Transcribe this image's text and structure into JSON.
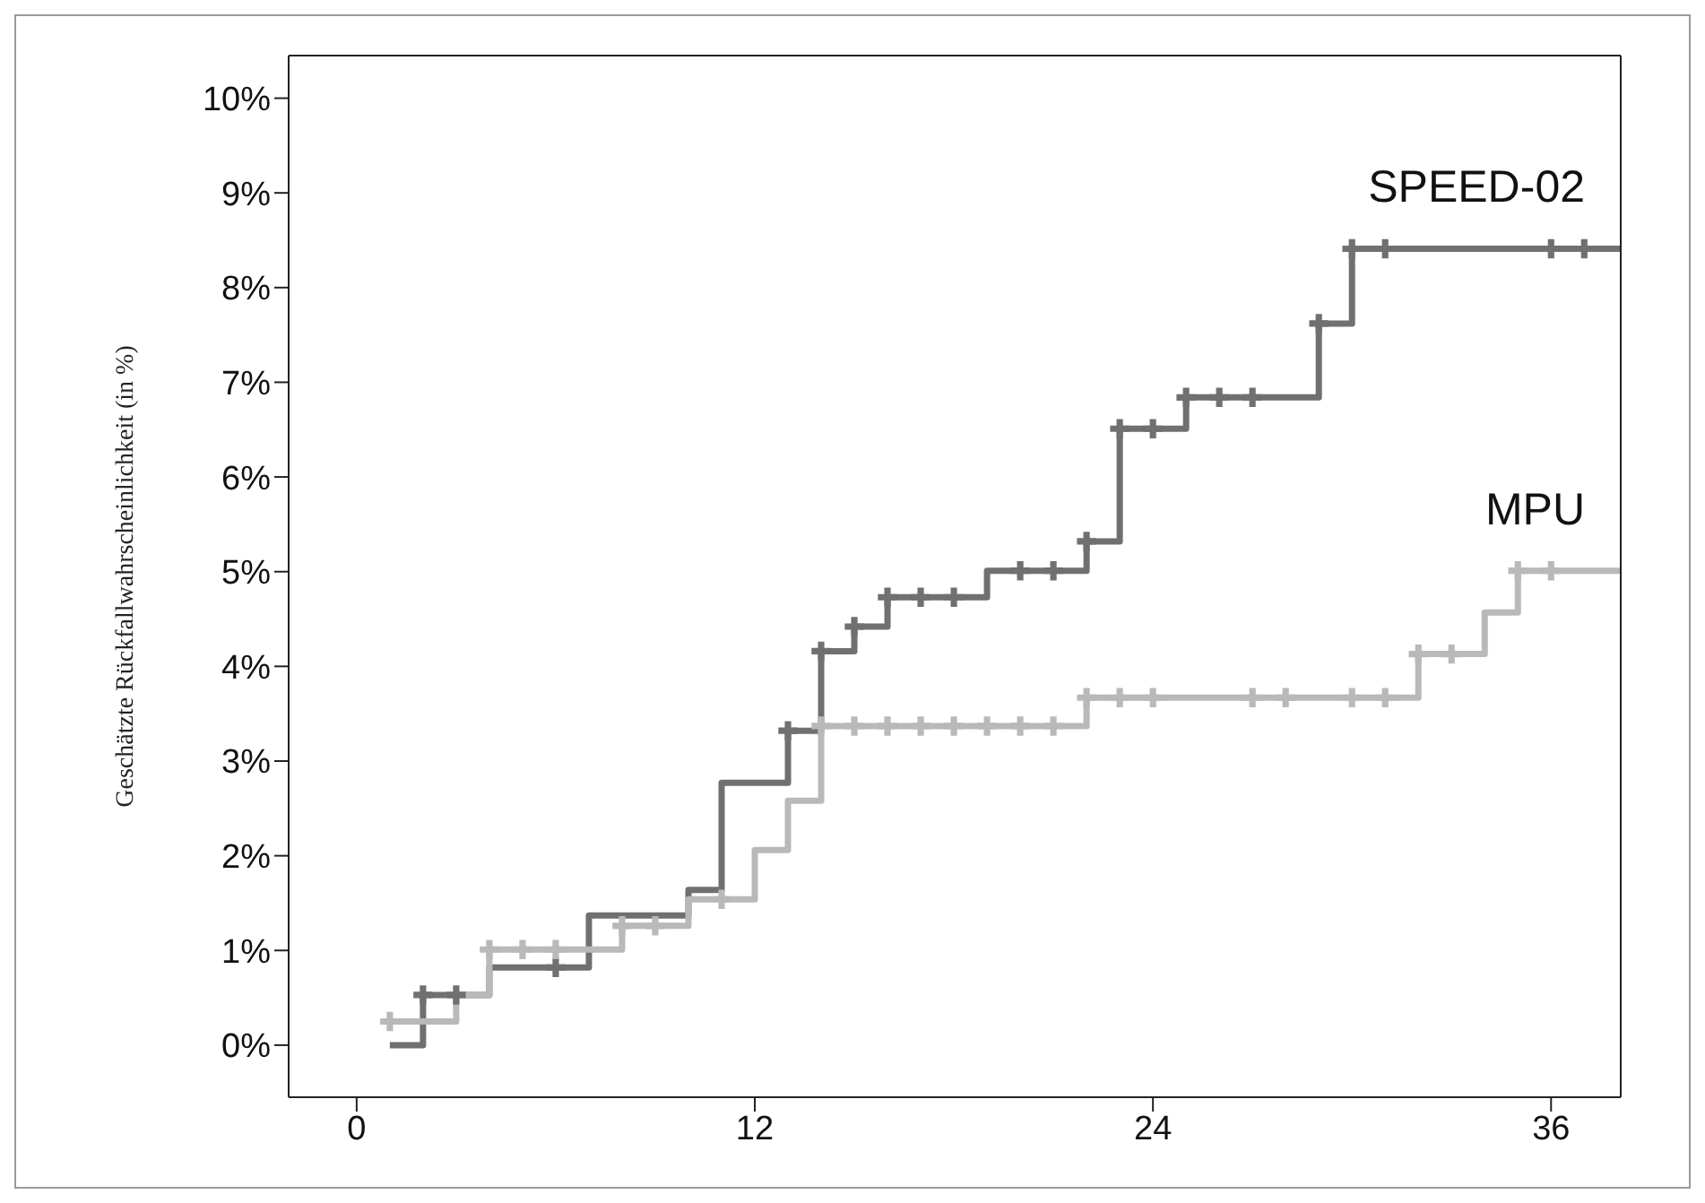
{
  "chart_data": {
    "type": "step",
    "ylabel": "Geschätzte Rückfallwahrscheinlichkeit (in %)",
    "xlim": [
      -2.05,
      38.1
    ],
    "xticks": [
      0,
      12,
      24,
      36
    ],
    "ylim": [
      -0.55,
      10.45
    ],
    "yticks": [
      {
        "value": 0,
        "label": "0%"
      },
      {
        "value": 1,
        "label": "1%"
      },
      {
        "value": 2,
        "label": "2%"
      },
      {
        "value": 3,
        "label": "3%"
      },
      {
        "value": 4,
        "label": "4%"
      },
      {
        "value": 5,
        "label": "5%"
      },
      {
        "value": 6,
        "label": "6%"
      },
      {
        "value": 7,
        "label": "7%"
      },
      {
        "value": 8,
        "label": "8%"
      },
      {
        "value": 9,
        "label": "9%"
      },
      {
        "value": 10,
        "label": "10%"
      }
    ],
    "grid": false,
    "legend": false,
    "line_style": "solid",
    "series": [
      {
        "name": "SPEED-02",
        "color": "#707071",
        "x": [
          1,
          2,
          4,
          7,
          10,
          11,
          13,
          14,
          15,
          16,
          19,
          22,
          23,
          25,
          29,
          30,
          38.1
        ],
        "values": [
          0,
          0.53,
          0.82,
          1.37,
          1.64,
          2.77,
          3.32,
          4.16,
          4.42,
          4.73,
          5.01,
          5.32,
          6.51,
          6.84,
          7.62,
          8.41,
          8.41
        ]
      },
      {
        "name": "MPU",
        "color": "#b9b9bb",
        "x": [
          1,
          3,
          4,
          8,
          10,
          12,
          13,
          14,
          22,
          32,
          34,
          35,
          38.1
        ],
        "values": [
          0.25,
          0.53,
          1.01,
          1.26,
          1.54,
          2.06,
          2.58,
          3.37,
          3.67,
          4.13,
          4.57,
          5.01,
          5.01
        ]
      },
      {
        "type": "scatter",
        "marker": "cross",
        "color": "#707071",
        "x": [
          2,
          3,
          6,
          13,
          14,
          15,
          16,
          17,
          18,
          20,
          21,
          22,
          23,
          24,
          25,
          26,
          27,
          29,
          30,
          31,
          36,
          37
        ],
        "values": [
          0.53,
          0.53,
          0.82,
          3.32,
          4.16,
          4.42,
          4.73,
          4.73,
          4.73,
          5.01,
          5.01,
          5.32,
          6.51,
          6.51,
          6.84,
          6.84,
          6.84,
          7.62,
          8.41,
          8.41,
          8.41,
          8.41
        ]
      },
      {
        "type": "scatter",
        "marker": "cross",
        "color": "#b9b9bb",
        "x": [
          1,
          4,
          5,
          6,
          8,
          9,
          11,
          14,
          15,
          16,
          17,
          18,
          19,
          20,
          21,
          22,
          23,
          24,
          27,
          28,
          30,
          31,
          32,
          33,
          35,
          36
        ],
        "values": [
          0.25,
          1.01,
          1.01,
          1.01,
          1.26,
          1.26,
          1.54,
          3.37,
          3.37,
          3.37,
          3.37,
          3.37,
          3.37,
          3.37,
          3.37,
          3.67,
          3.67,
          3.67,
          3.67,
          3.67,
          3.67,
          3.67,
          4.13,
          4.13,
          5.01,
          5.01
        ]
      }
    ]
  }
}
